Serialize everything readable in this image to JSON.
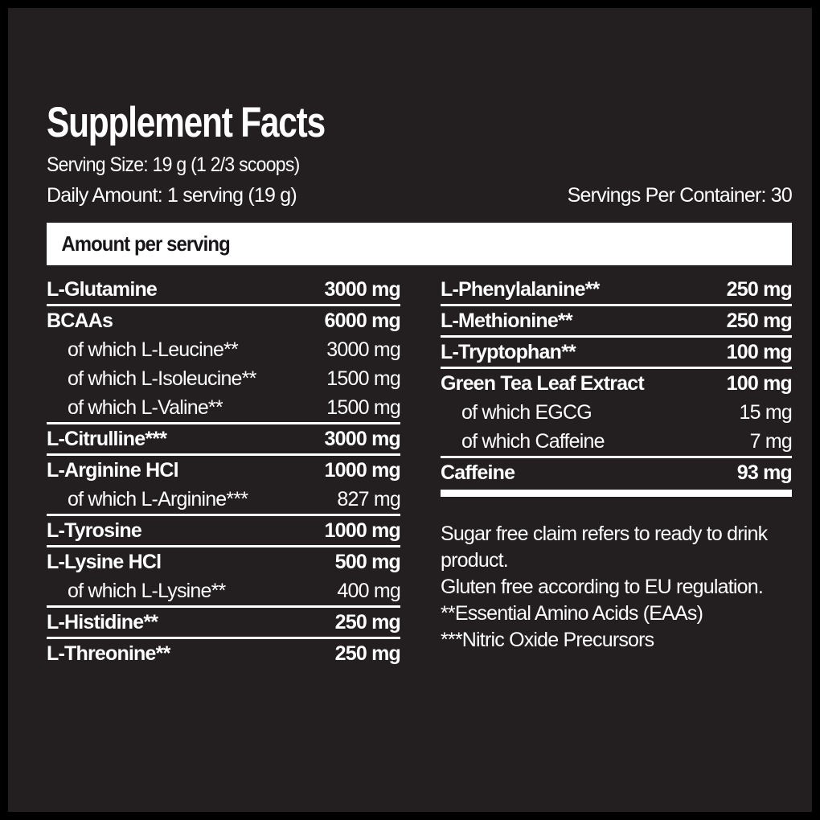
{
  "header": {
    "title": "Supplement Facts",
    "serving_size": "Serving Size: 19 g (1 2/3 scoops)",
    "daily_amount": "Daily Amount: 1 serving (19 g)",
    "servings_per_container": "Servings Per Container: 30"
  },
  "table": {
    "column_header": "Amount per serving",
    "left": [
      {
        "name": "L-Glutamine",
        "amount": "3000 mg"
      },
      {
        "name": "BCAAs",
        "amount": "6000 mg"
      },
      {
        "name": "of which L-Leucine**",
        "amount": "3000 mg"
      },
      {
        "name": "of which L-Isoleucine**",
        "amount": "1500 mg"
      },
      {
        "name": "of which L-Valine**",
        "amount": "1500 mg"
      },
      {
        "name": "L-Citrulline***",
        "amount": "3000 mg"
      },
      {
        "name": "L-Arginine HCl",
        "amount": "1000 mg"
      },
      {
        "name": "of which L-Arginine***",
        "amount": "827 mg"
      },
      {
        "name": "L-Tyrosine",
        "amount": "1000 mg"
      },
      {
        "name": "L-Lysine HCl",
        "amount": "500 mg"
      },
      {
        "name": "of which L-Lysine**",
        "amount": "400 mg"
      },
      {
        "name": "L-Histidine**",
        "amount": "250 mg"
      },
      {
        "name": "L-Threonine**",
        "amount": "250 mg"
      }
    ],
    "right": [
      {
        "name": "L-Phenylalanine**",
        "amount": "250 mg"
      },
      {
        "name": "L-Methionine**",
        "amount": "250 mg"
      },
      {
        "name": "L-Tryptophan**",
        "amount": "100 mg"
      },
      {
        "name": "Green Tea Leaf Extract",
        "amount": "100 mg"
      },
      {
        "name": "of which EGCG",
        "amount": "15 mg"
      },
      {
        "name": "of which Caffeine",
        "amount": "7 mg"
      },
      {
        "name": "Caffeine",
        "amount": "93 mg"
      }
    ]
  },
  "footnotes": [
    "Sugar free claim refers to ready to drink product.",
    "Gluten free according to EU regulation.",
    "**Essential Amino Acids (EAAs)",
    "***Nitric Oxide Precursors"
  ],
  "colors": {
    "background": "#000000",
    "panel": "#231f20",
    "text": "#ffffff",
    "header_bar": "#ffffff",
    "header_bar_text": "#17151a"
  }
}
